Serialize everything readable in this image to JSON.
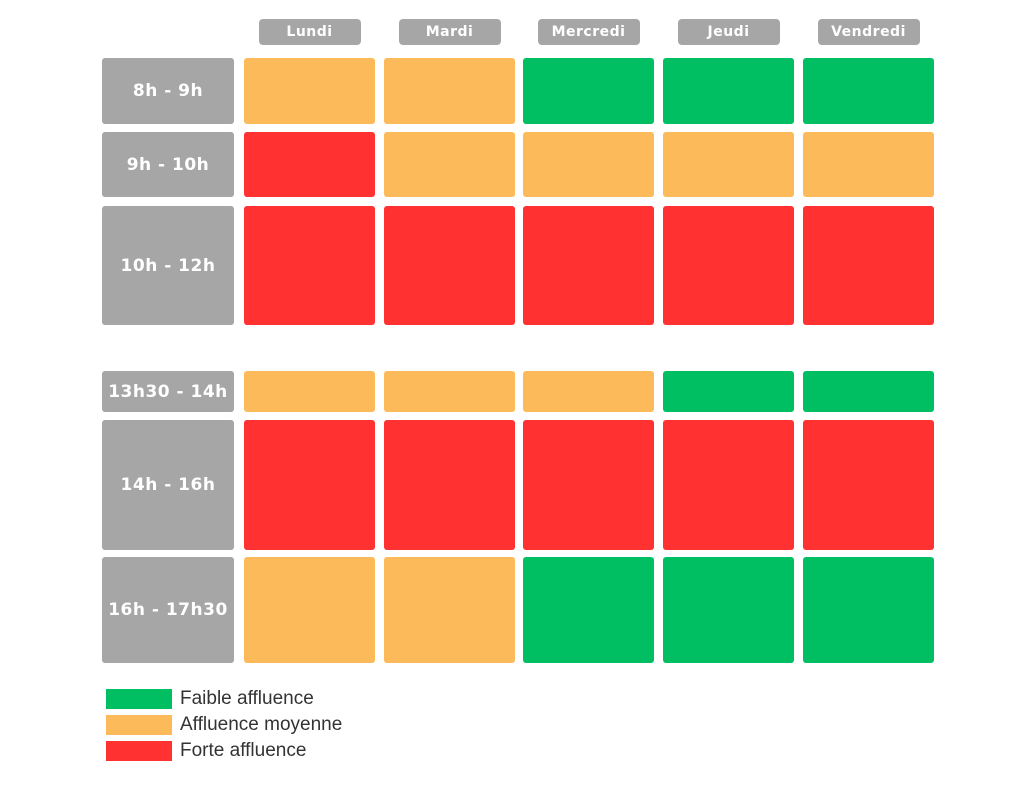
{
  "chart_data": {
    "type": "heatmap",
    "columns": [
      "Lundi",
      "Mardi",
      "Mercredi",
      "Jeudi",
      "Vendredi"
    ],
    "rows": [
      "8h - 9h",
      "9h - 10h",
      "10h - 12h",
      "13h30 - 14h",
      "14h - 16h",
      "16h - 17h30"
    ],
    "levels": [
      {
        "key": "faible",
        "label": "Faible affluence",
        "color": "#00bf63"
      },
      {
        "key": "moyenne",
        "label": "Affluence moyenne",
        "color": "#fdba5a"
      },
      {
        "key": "forte",
        "label": "Forte affluence",
        "color": "#ff3131"
      }
    ],
    "values": [
      [
        "moyenne",
        "moyenne",
        "faible",
        "faible",
        "faible"
      ],
      [
        "forte",
        "moyenne",
        "moyenne",
        "moyenne",
        "moyenne"
      ],
      [
        "forte",
        "forte",
        "forte",
        "forte",
        "forte"
      ],
      [
        "moyenne",
        "moyenne",
        "moyenne",
        "faible",
        "faible"
      ],
      [
        "forte",
        "forte",
        "forte",
        "forte",
        "forte"
      ],
      [
        "moyenne",
        "moyenne",
        "faible",
        "faible",
        "faible"
      ]
    ],
    "legend_position": "bottom-left"
  }
}
